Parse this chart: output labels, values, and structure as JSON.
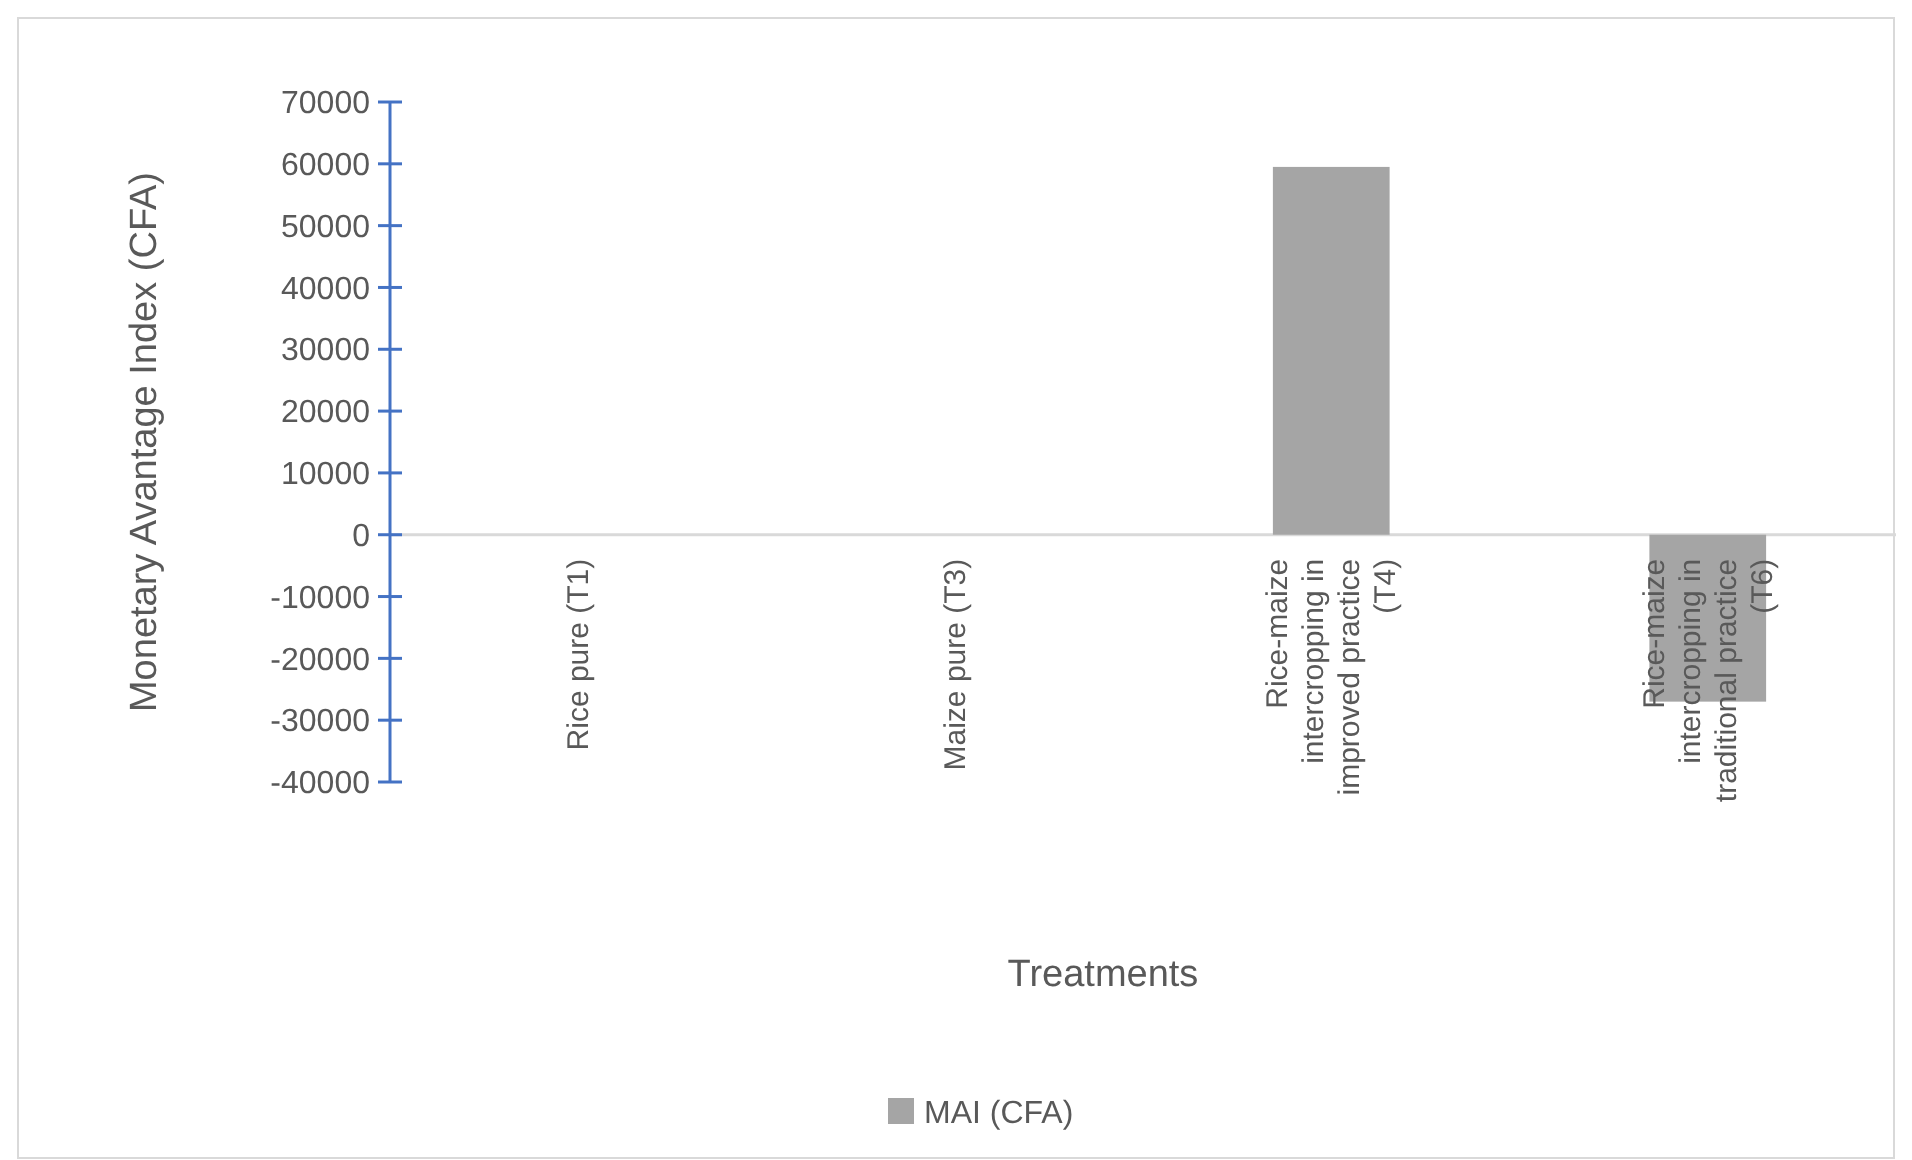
{
  "chart_data": {
    "type": "bar",
    "xlabel": "Treatments",
    "ylabel": "Monetary  Avantage Index (CFA)",
    "categories": [
      "Rice pure (T1)",
      "Maize pure (T3)",
      "Rice-maize intercropping in improved practice (T4)",
      "Rice-maize intercropping in traditional practice (T6)"
    ],
    "series": [
      {
        "name": "MAI (CFA)",
        "color": "#a5a5a5",
        "values": [
          0,
          0,
          59500,
          -27000
        ]
      }
    ],
    "ylim": [
      -40000,
      70000
    ],
    "yticks": [
      -40000,
      -30000,
      -20000,
      -10000,
      0,
      10000,
      20000,
      30000,
      40000,
      50000,
      60000,
      70000
    ],
    "legend": "bottom",
    "grid": false
  }
}
